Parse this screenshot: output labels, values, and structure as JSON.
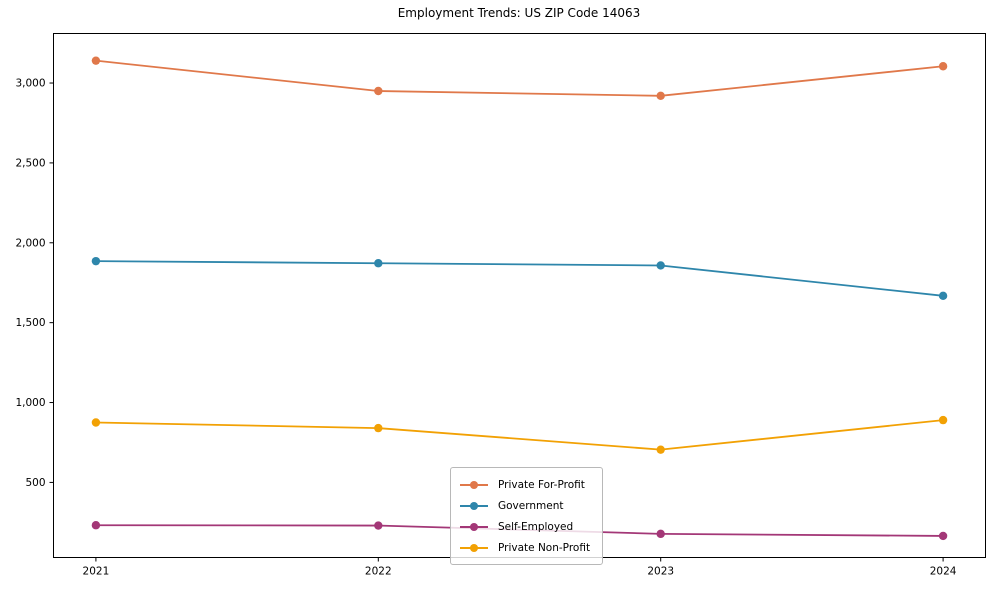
{
  "figure": {
    "title": "Employment Trends: US ZIP Code 14063"
  },
  "chart_data": {
    "type": "line",
    "title": "Employment Trends: US ZIP Code 14063",
    "categories": [
      "2021",
      "2022",
      "2023",
      "2024"
    ],
    "series": [
      {
        "name": "Private For-Profit",
        "color": "#E0784A",
        "values": [
          3140,
          2950,
          2920,
          3105
        ]
      },
      {
        "name": "Government",
        "color": "#2E86AB",
        "values": [
          1885,
          1872,
          1858,
          1668
        ]
      },
      {
        "name": "Self-Employed",
        "color": "#A33777",
        "values": [
          232,
          230,
          178,
          165
        ]
      },
      {
        "name": "Private Non-Profit",
        "color": "#F2A104",
        "values": [
          875,
          840,
          705,
          890
        ]
      }
    ],
    "xlabel": "",
    "ylabel": "",
    "ylim": [
      30,
      3310
    ],
    "yticks": [
      500,
      1000,
      1500,
      2000,
      2500,
      3000
    ],
    "ytick_labels": [
      "500",
      "1,000",
      "1,500",
      "2,000",
      "2,500",
      "3,000"
    ],
    "grid": false,
    "legend_position": "lower-center",
    "axis_color": "#000000",
    "background_color": "#ffffff",
    "marker": "circle",
    "line_width": 1.8,
    "marker_radius": 4.2
  }
}
